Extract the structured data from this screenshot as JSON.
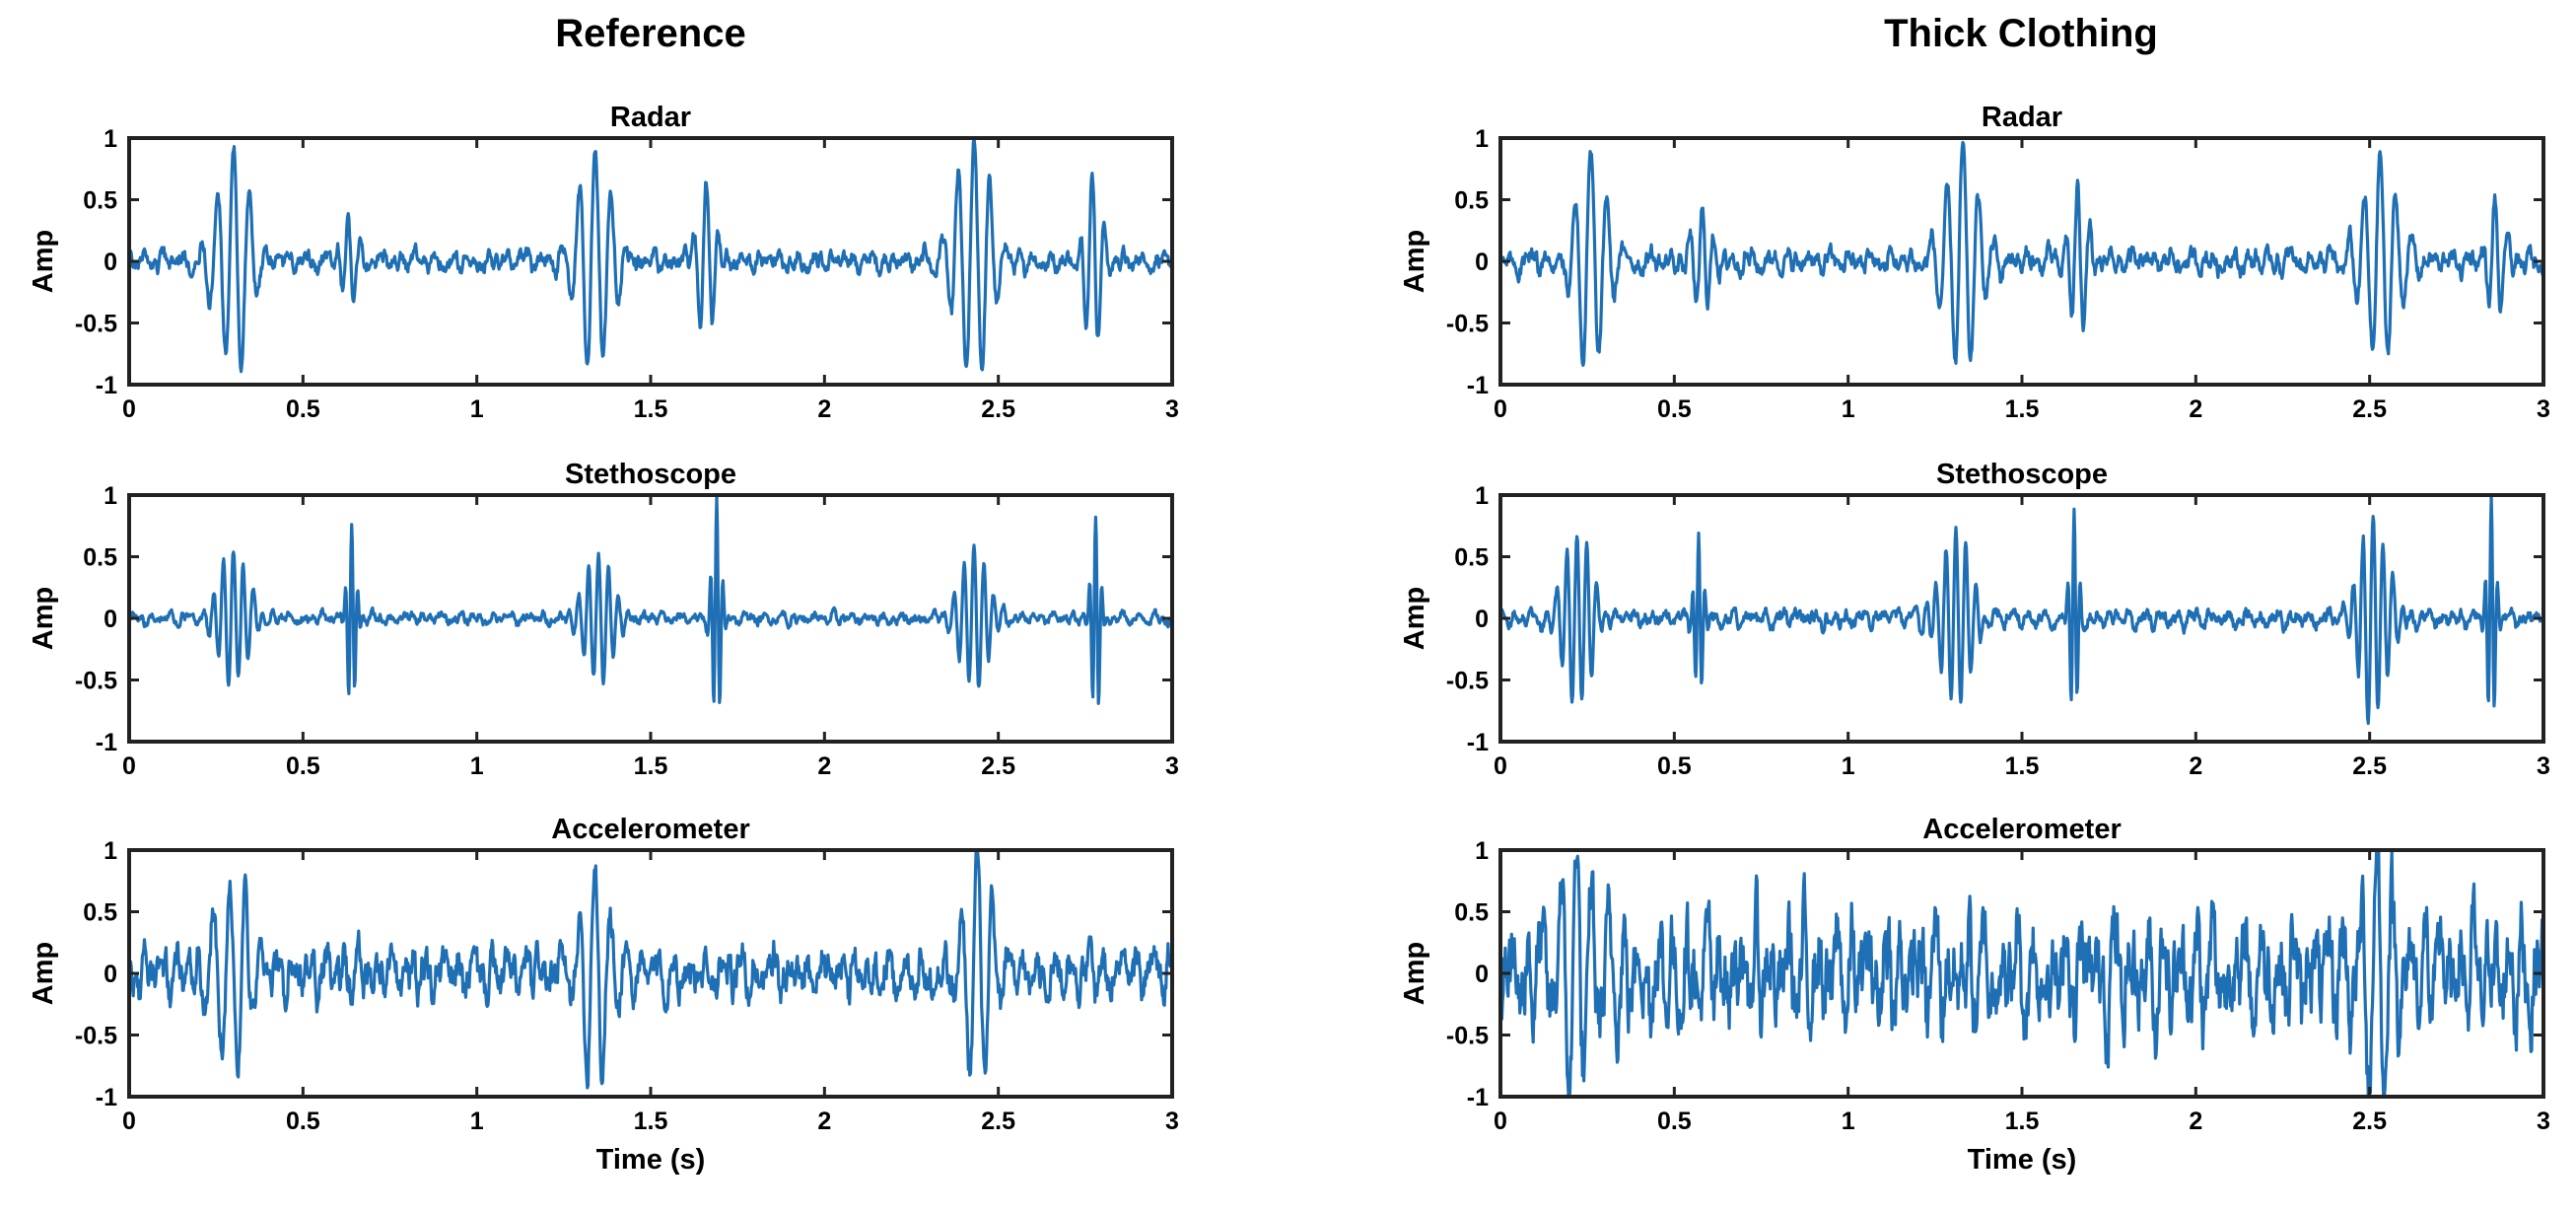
{
  "columns": [
    {
      "title": "Reference"
    },
    {
      "title": "Thick Clothing"
    }
  ],
  "chart_data": [
    {
      "type": "line",
      "column": "Reference",
      "title": "Radar",
      "ylabel": "Amp",
      "xlabel": "",
      "xlim": [
        0,
        3
      ],
      "ylim": [
        -1,
        1
      ],
      "xticks": [
        "0",
        "0.5",
        "1",
        "1.5",
        "2",
        "2.5",
        "3"
      ],
      "yticks": [
        "1",
        "0.5",
        "0",
        "-0.5",
        "-1"
      ],
      "color": "#1f6fb4",
      "grid": false,
      "events": [
        {
          "t": 0.3,
          "a": 0.88,
          "f": 22,
          "w": 0.045
        },
        {
          "t": 0.63,
          "a": 0.38,
          "f": 30,
          "w": 0.02
        },
        {
          "t": 1.34,
          "a": 0.9,
          "f": 22,
          "w": 0.045
        },
        {
          "t": 1.66,
          "a": 0.58,
          "f": 28,
          "w": 0.025
        },
        {
          "t": 2.43,
          "a": 0.98,
          "f": 22,
          "w": 0.05
        },
        {
          "t": 2.77,
          "a": 0.72,
          "f": 28,
          "w": 0.025
        }
      ],
      "noise": 0.07,
      "note_seed": 1
    },
    {
      "type": "line",
      "column": "Reference",
      "title": "Stethoscope",
      "ylabel": "Amp",
      "xlabel": "",
      "xlim": [
        0,
        3
      ],
      "ylim": [
        -1,
        1
      ],
      "xticks": [
        "0",
        "0.5",
        "1",
        "1.5",
        "2",
        "2.5",
        "3"
      ],
      "yticks": [
        "1",
        "0.5",
        "0",
        "-0.5",
        "-1"
      ],
      "color": "#1f6fb4",
      "grid": false,
      "events": [
        {
          "t": 0.3,
          "a": 0.55,
          "f": 35,
          "w": 0.04
        },
        {
          "t": 0.64,
          "a": 0.75,
          "f": 55,
          "w": 0.012
        },
        {
          "t": 1.35,
          "a": 0.55,
          "f": 35,
          "w": 0.04
        },
        {
          "t": 1.69,
          "a": 0.95,
          "f": 55,
          "w": 0.012
        },
        {
          "t": 2.43,
          "a": 0.55,
          "f": 35,
          "w": 0.04
        },
        {
          "t": 2.78,
          "a": 0.85,
          "f": 55,
          "w": 0.012
        }
      ],
      "noise": 0.04,
      "note_seed": 2
    },
    {
      "type": "line",
      "column": "Reference",
      "title": "Accelerometer",
      "ylabel": "Amp",
      "xlabel": "Time (s)",
      "xlim": [
        0,
        3
      ],
      "ylim": [
        -1,
        1
      ],
      "xticks": [
        "0",
        "0.5",
        "1",
        "1.5",
        "2",
        "2.5",
        "3"
      ],
      "yticks": [
        "1",
        "0.5",
        "0",
        "-0.5",
        "-1"
      ],
      "color": "#1f6fb4",
      "grid": false,
      "events": [
        {
          "t": 0.29,
          "a": 0.8,
          "f": 22,
          "w": 0.045
        },
        {
          "t": 1.34,
          "a": 0.85,
          "f": 22,
          "w": 0.045
        },
        {
          "t": 2.44,
          "a": 0.98,
          "f": 22,
          "w": 0.045
        }
      ],
      "noise": 0.17,
      "note_seed": 3
    },
    {
      "type": "line",
      "column": "Thick Clothing",
      "title": "Radar",
      "ylabel": "Amp",
      "xlabel": "",
      "xlim": [
        0,
        3
      ],
      "ylim": [
        -1,
        1
      ],
      "xticks": [
        "0",
        "0.5",
        "1",
        "1.5",
        "2",
        "2.5",
        "3"
      ],
      "yticks": [
        "1",
        "0.5",
        "0",
        "-0.5",
        "-1"
      ],
      "color": "#1f6fb4",
      "grid": false,
      "events": [
        {
          "t": 0.26,
          "a": 0.85,
          "f": 22,
          "w": 0.045
        },
        {
          "t": 0.58,
          "a": 0.42,
          "f": 28,
          "w": 0.025
        },
        {
          "t": 1.33,
          "a": 0.95,
          "f": 22,
          "w": 0.045
        },
        {
          "t": 1.66,
          "a": 0.6,
          "f": 28,
          "w": 0.025
        },
        {
          "t": 2.53,
          "a": 0.9,
          "f": 22,
          "w": 0.045
        },
        {
          "t": 2.86,
          "a": 0.5,
          "f": 28,
          "w": 0.025
        }
      ],
      "noise": 0.08,
      "note_seed": 4
    },
    {
      "type": "line",
      "column": "Thick Clothing",
      "title": "Stethoscope",
      "ylabel": "Amp",
      "xlabel": "",
      "xlim": [
        0,
        3
      ],
      "ylim": [
        -1,
        1
      ],
      "xticks": [
        "0",
        "0.5",
        "1",
        "1.5",
        "2",
        "2.5",
        "3"
      ],
      "yticks": [
        "1",
        "0.5",
        "0",
        "-0.5",
        "-1"
      ],
      "color": "#1f6fb4",
      "grid": false,
      "events": [
        {
          "t": 0.22,
          "a": 0.7,
          "f": 35,
          "w": 0.04
        },
        {
          "t": 0.57,
          "a": 0.68,
          "f": 55,
          "w": 0.012
        },
        {
          "t": 1.31,
          "a": 0.7,
          "f": 35,
          "w": 0.04
        },
        {
          "t": 1.65,
          "a": 0.88,
          "f": 55,
          "w": 0.012
        },
        {
          "t": 2.51,
          "a": 0.85,
          "f": 35,
          "w": 0.04
        },
        {
          "t": 2.85,
          "a": 0.95,
          "f": 55,
          "w": 0.012
        }
      ],
      "noise": 0.06,
      "note_seed": 5
    },
    {
      "type": "line",
      "column": "Thick Clothing",
      "title": "Accelerometer",
      "ylabel": "Amp",
      "xlabel": "Time (s)",
      "xlim": [
        0,
        3
      ],
      "ylim": [
        -1,
        1
      ],
      "xticks": [
        "0",
        "0.5",
        "1",
        "1.5",
        "2",
        "2.5",
        "3"
      ],
      "yticks": [
        "1",
        "0.5",
        "0",
        "-0.5",
        "-1"
      ],
      "color": "#1f6fb4",
      "grid": false,
      "events": [
        {
          "t": 0.22,
          "a": 0.8,
          "f": 22,
          "w": 0.045
        },
        {
          "t": 2.52,
          "a": 0.98,
          "f": 22,
          "w": 0.03
        }
      ],
      "noise": 0.38,
      "note_seed": 6
    }
  ]
}
